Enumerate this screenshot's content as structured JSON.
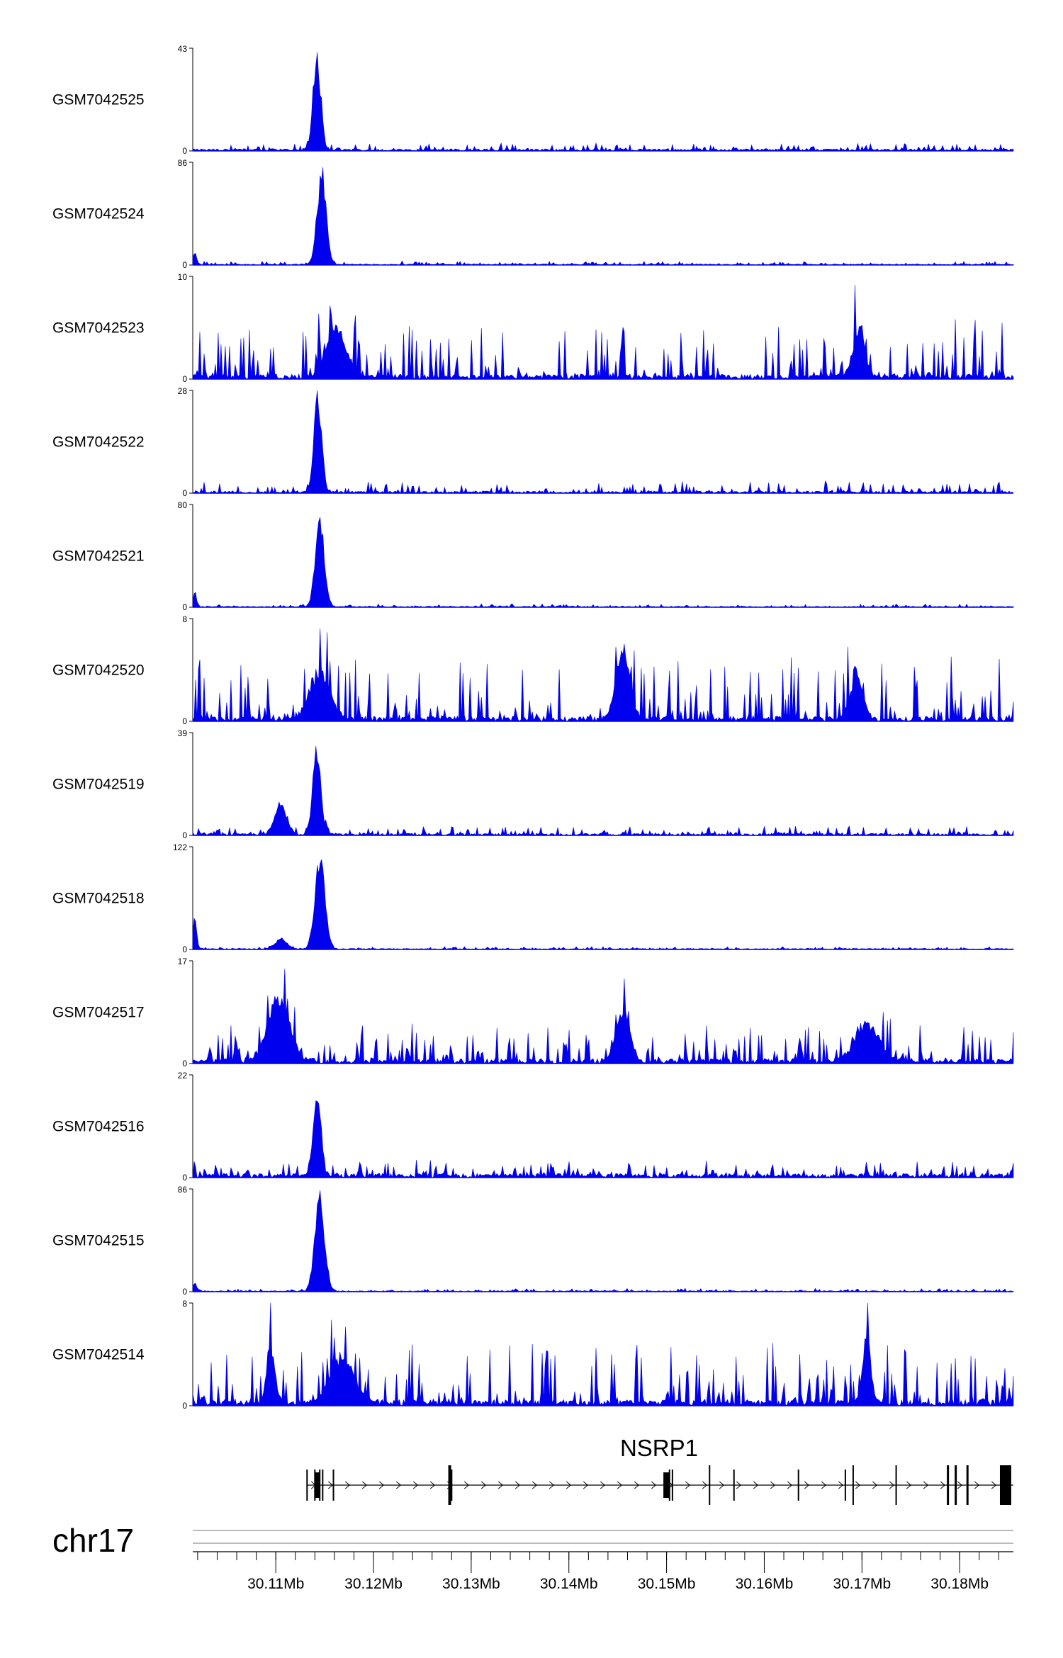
{
  "chart_data": {
    "type": "area",
    "chromosome": "chr17",
    "x_range_mb": [
      30.1015,
      30.1855
    ],
    "x_ticks": [
      "30.11Mb",
      "30.12Mb",
      "30.13Mb",
      "30.14Mb",
      "30.15Mb",
      "30.16Mb",
      "30.17Mb",
      "30.18Mb"
    ],
    "x_tick_values_mb": [
      30.11,
      30.12,
      30.13,
      30.14,
      30.15,
      30.16,
      30.17,
      30.18
    ],
    "tracks": [
      {
        "name": "GSM7042525",
        "ymax": 43,
        "ymin": 0,
        "peaks": [
          {
            "x": 30.1142,
            "h": 43,
            "w": 0.0004
          }
        ],
        "noise": 0.06,
        "floor": 0.02,
        "seed": 11
      },
      {
        "name": "GSM7042524",
        "ymax": 86,
        "ymin": 0,
        "peaks": [
          {
            "x": 30.1147,
            "h": 85,
            "w": 0.00045
          },
          {
            "x": 30.1017,
            "h": 10,
            "w": 0.0002
          }
        ],
        "noise": 0.03,
        "floor": 0.01,
        "seed": 12
      },
      {
        "name": "GSM7042523",
        "ymax": 10,
        "ymin": 0,
        "peaks": [
          {
            "x": 30.1162,
            "h": 5,
            "w": 0.001
          },
          {
            "x": 30.1697,
            "h": 5,
            "w": 0.0006
          }
        ],
        "noise": 0.55,
        "floor": 0.05,
        "seed": 13
      },
      {
        "name": "GSM7042522",
        "ymax": 28,
        "ymin": 0,
        "peaks": [
          {
            "x": 30.1143,
            "h": 28,
            "w": 0.0004
          }
        ],
        "noise": 0.1,
        "floor": 0.02,
        "seed": 14
      },
      {
        "name": "GSM7042521",
        "ymax": 80,
        "ymin": 0,
        "peaks": [
          {
            "x": 30.1145,
            "h": 78,
            "w": 0.00045
          },
          {
            "x": 30.1017,
            "h": 12,
            "w": 0.0002
          }
        ],
        "noise": 0.025,
        "floor": 0.01,
        "seed": 15
      },
      {
        "name": "GSM7042520",
        "ymax": 8,
        "ymin": 0,
        "peaks": [
          {
            "x": 30.1145,
            "h": 4,
            "w": 0.001
          },
          {
            "x": 30.1455,
            "h": 6,
            "w": 0.0007
          },
          {
            "x": 30.1695,
            "h": 4,
            "w": 0.0006
          }
        ],
        "noise": 0.6,
        "floor": 0.05,
        "seed": 16
      },
      {
        "name": "GSM7042519",
        "ymax": 39,
        "ymin": 0,
        "peaks": [
          {
            "x": 30.1142,
            "h": 37,
            "w": 0.0004
          },
          {
            "x": 30.1105,
            "h": 13,
            "w": 0.0006
          }
        ],
        "noise": 0.08,
        "floor": 0.02,
        "seed": 17
      },
      {
        "name": "GSM7042518",
        "ymax": 122,
        "ymin": 0,
        "peaks": [
          {
            "x": 30.1145,
            "h": 118,
            "w": 0.0005
          },
          {
            "x": 30.1105,
            "h": 12,
            "w": 0.0006
          },
          {
            "x": 30.1017,
            "h": 40,
            "w": 0.0002
          }
        ],
        "noise": 0.02,
        "floor": 0.01,
        "seed": 18
      },
      {
        "name": "GSM7042517",
        "ymax": 17,
        "ymin": 0,
        "peaks": [
          {
            "x": 30.1103,
            "h": 12,
            "w": 0.0011
          },
          {
            "x": 30.1455,
            "h": 9,
            "w": 0.0007
          },
          {
            "x": 30.1705,
            "h": 7,
            "w": 0.0012
          }
        ],
        "noise": 0.35,
        "floor": 0.05,
        "seed": 19
      },
      {
        "name": "GSM7042516",
        "ymax": 22,
        "ymin": 0,
        "peaks": [
          {
            "x": 30.1142,
            "h": 20,
            "w": 0.0004
          }
        ],
        "noise": 0.14,
        "floor": 0.04,
        "seed": 20
      },
      {
        "name": "GSM7042515",
        "ymax": 86,
        "ymin": 0,
        "peaks": [
          {
            "x": 30.1145,
            "h": 84,
            "w": 0.0005
          },
          {
            "x": 30.1017,
            "h": 8,
            "w": 0.0002
          }
        ],
        "noise": 0.025,
        "floor": 0.01,
        "seed": 21
      },
      {
        "name": "GSM7042514",
        "ymax": 8,
        "ymin": 0,
        "peaks": [
          {
            "x": 30.1168,
            "h": 4,
            "w": 0.0012
          },
          {
            "x": 30.1095,
            "h": 5,
            "w": 0.0004
          },
          {
            "x": 30.1705,
            "h": 6,
            "w": 0.0004
          }
        ],
        "noise": 0.6,
        "floor": 0.06,
        "seed": 22
      }
    ],
    "gene": {
      "name": "NSRP1",
      "strand": "+",
      "start_mb": 30.1132,
      "end_mb": 30.1855,
      "exons_mb": [
        30.1132,
        30.114,
        30.1142,
        30.1145,
        30.1148,
        30.1159,
        30.1278,
        30.128,
        30.15,
        30.1503,
        30.1506,
        30.1544,
        30.1569,
        30.1635,
        30.1683,
        30.1691,
        30.1735,
        30.1788,
        30.1796,
        30.1808,
        30.1847
      ]
    },
    "colors": {
      "signal": "#0000ee",
      "axis": "#000000"
    }
  }
}
